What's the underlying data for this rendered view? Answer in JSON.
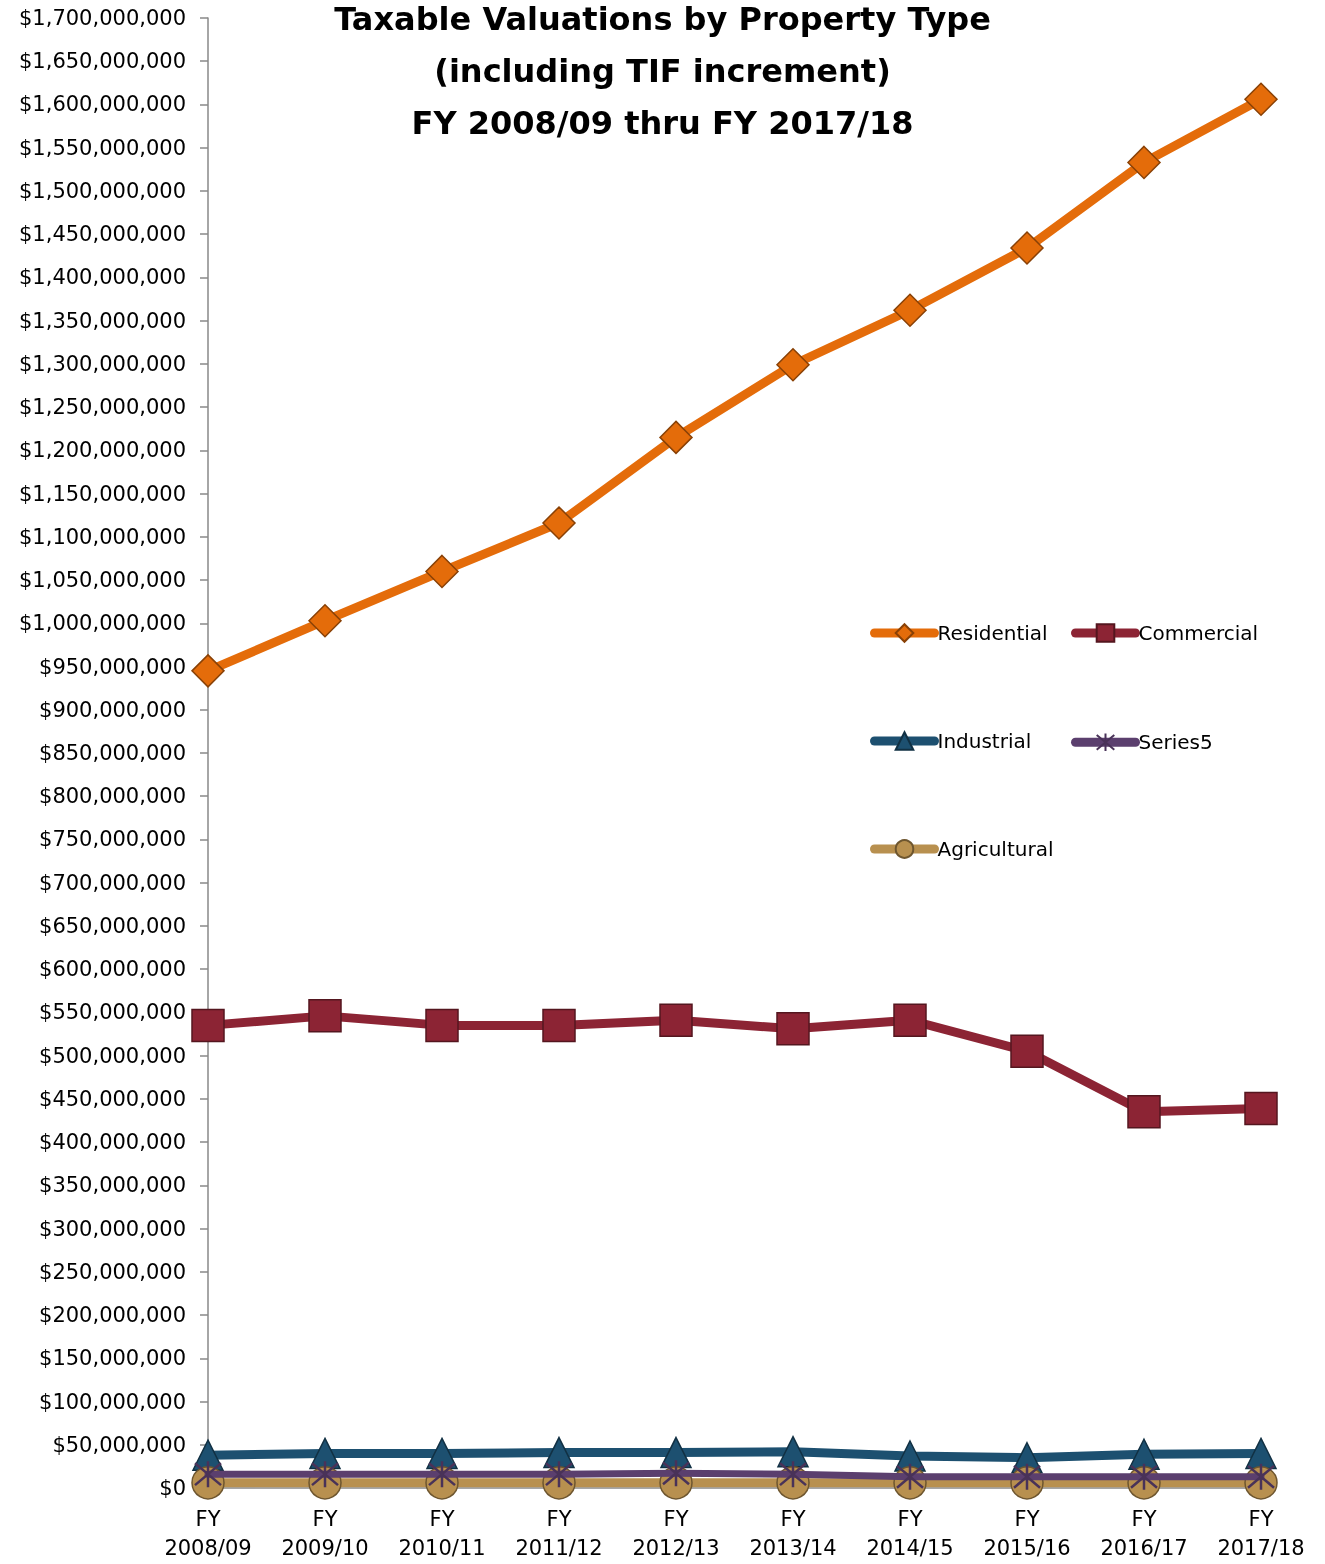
{
  "chart_data": {
    "type": "line",
    "title": "Taxable Valuations by Property Type\n(including TIF increment)\nFY 2008/09 thru FY 2017/18",
    "categories": [
      "FY 2008/09",
      "FY 2009/10",
      "FY 2010/11",
      "FY 2011/12",
      "FY 2012/13",
      "FY 2013/14",
      "FY 2014/15",
      "FY 2015/16",
      "FY 2016/17",
      "FY 2017/18"
    ],
    "series": [
      {
        "name": "Residential",
        "color": "#e46c0a",
        "marker": "diamond",
        "values": [
          945000000,
          1003000000,
          1060000000,
          1116000000,
          1215000000,
          1299000000,
          1362000000,
          1434000000,
          1533000000,
          1606000000
        ]
      },
      {
        "name": "Commercial",
        "color": "#8c2434",
        "marker": "square",
        "values": [
          535000000,
          546000000,
          535000000,
          535000000,
          541000000,
          531000000,
          541000000,
          505000000,
          435000000,
          439000000
        ]
      },
      {
        "name": "Industrial",
        "color": "#1d5070",
        "marker": "triangle",
        "values": [
          38000000,
          40000000,
          40000000,
          41000000,
          41000000,
          42000000,
          37000000,
          35000000,
          39000000,
          40000000
        ]
      },
      {
        "name": "Series5",
        "color": "#5b3f6e",
        "marker": "cross",
        "values": [
          16000000,
          16000000,
          16000000,
          16000000,
          17000000,
          16000000,
          13000000,
          13000000,
          13000000,
          13000000
        ]
      },
      {
        "name": "Agricultural",
        "color": "#b8904f",
        "marker": "circle",
        "values": [
          6000000,
          6000000,
          6000000,
          6000000,
          6000000,
          6000000,
          6000000,
          6000000,
          6000000,
          6000000
        ]
      }
    ],
    "ylim": [
      0,
      1700000000
    ],
    "yticks": [
      {
        "value": 0,
        "label": "$0"
      },
      {
        "value": 50000000,
        "label": "$50,000,000"
      },
      {
        "value": 100000000,
        "label": "$100,000,000"
      },
      {
        "value": 150000000,
        "label": "$150,000,000"
      },
      {
        "value": 200000000,
        "label": "$200,000,000"
      },
      {
        "value": 250000000,
        "label": "$250,000,000"
      },
      {
        "value": 300000000,
        "label": "$300,000,000"
      },
      {
        "value": 350000000,
        "label": "$350,000,000"
      },
      {
        "value": 400000000,
        "label": "$400,000,000"
      },
      {
        "value": 450000000,
        "label": "$450,000,000"
      },
      {
        "value": 500000000,
        "label": "$500,000,000"
      },
      {
        "value": 550000000,
        "label": "$550,000,000"
      },
      {
        "value": 600000000,
        "label": "$600,000,000"
      },
      {
        "value": 650000000,
        "label": "$650,000,000"
      },
      {
        "value": 700000000,
        "label": "$700,000,000"
      },
      {
        "value": 750000000,
        "label": "$750,000,000"
      },
      {
        "value": 800000000,
        "label": "$800,000,000"
      },
      {
        "value": 850000000,
        "label": "$850,000,000"
      },
      {
        "value": 900000000,
        "label": "$900,000,000"
      },
      {
        "value": 950000000,
        "label": "$950,000,000"
      },
      {
        "value": 1000000000,
        "label": "$1,000,000,000"
      },
      {
        "value": 1050000000,
        "label": "$1,050,000,000"
      },
      {
        "value": 1100000000,
        "label": "$1,100,000,000"
      },
      {
        "value": 1150000000,
        "label": "$1,150,000,000"
      },
      {
        "value": 1200000000,
        "label": "$1,200,000,000"
      },
      {
        "value": 1250000000,
        "label": "$1,250,000,000"
      },
      {
        "value": 1300000000,
        "label": "$1,300,000,000"
      },
      {
        "value": 1350000000,
        "label": "$1,350,000,000"
      },
      {
        "value": 1400000000,
        "label": "$1,400,000,000"
      },
      {
        "value": 1450000000,
        "label": "$1,450,000,000"
      },
      {
        "value": 1500000000,
        "label": "$1,500,000,000"
      },
      {
        "value": 1550000000,
        "label": "$1,550,000,000"
      },
      {
        "value": 1600000000,
        "label": "$1,600,000,000"
      },
      {
        "value": 1650000000,
        "label": "$1,650,000,000"
      },
      {
        "value": 1700000000,
        "label": "$1,700,000,000"
      }
    ],
    "grid": false,
    "legend": "right"
  }
}
